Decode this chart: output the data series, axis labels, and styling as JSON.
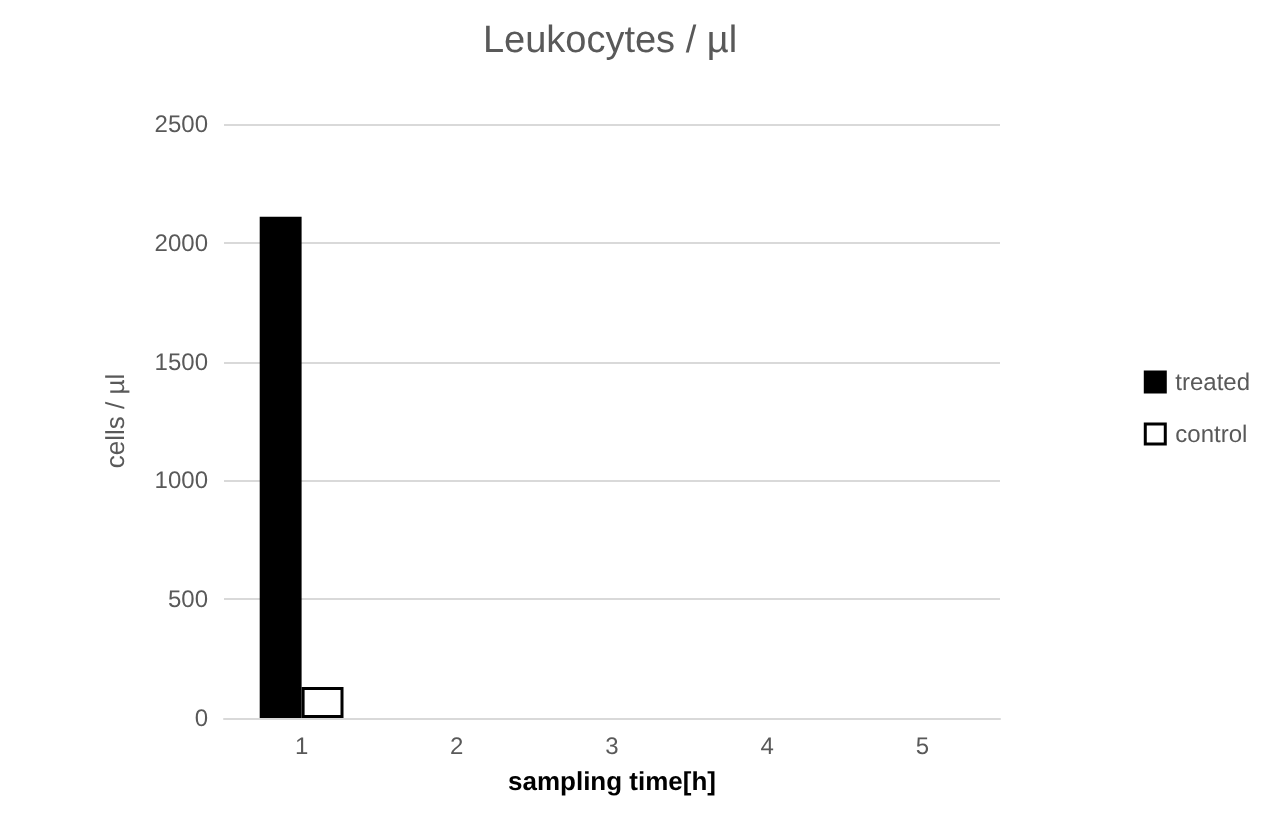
{
  "chart_data": {
    "type": "bar",
    "title": "Leukocytes / µl",
    "xlabel": "sampling time[h]",
    "ylabel": "cells / µl",
    "categories": [
      "1",
      "2",
      "3",
      "4",
      "5"
    ],
    "series": [
      {
        "name": "treated",
        "color": "#000000",
        "values": [
          2110,
          null,
          null,
          null,
          null
        ]
      },
      {
        "name": "control",
        "color": "#ffffff",
        "values": [
          130,
          null,
          null,
          null,
          null
        ]
      }
    ],
    "ylim": [
      0,
      2500
    ],
    "yticks": [
      0,
      500,
      1000,
      1500,
      2000,
      2500
    ],
    "grid": "y",
    "legend": "right"
  }
}
